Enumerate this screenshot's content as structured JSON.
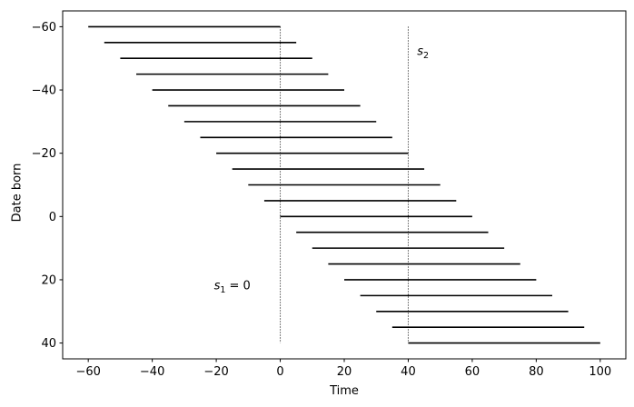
{
  "chart_data": {
    "type": "line",
    "subtype": "horizontal-interval-lifespans",
    "title": "",
    "xlabel": "Time",
    "ylabel": "Date born",
    "xlim": [
      -68,
      108
    ],
    "ylim": [
      -65,
      45
    ],
    "y_inverted": true,
    "grid": false,
    "legend": null,
    "xticks": [
      -60,
      -40,
      -20,
      0,
      20,
      40,
      60,
      80,
      100
    ],
    "yticks": [
      -60,
      -40,
      -20,
      0,
      20,
      40
    ],
    "lifespan_years": 60,
    "lifelines": [
      {
        "born": -60,
        "start": -60,
        "end": 0
      },
      {
        "born": -55,
        "start": -55,
        "end": 5
      },
      {
        "born": -50,
        "start": -50,
        "end": 10
      },
      {
        "born": -45,
        "start": -45,
        "end": 15
      },
      {
        "born": -40,
        "start": -40,
        "end": 20
      },
      {
        "born": -35,
        "start": -35,
        "end": 25
      },
      {
        "born": -30,
        "start": -30,
        "end": 30
      },
      {
        "born": -25,
        "start": -25,
        "end": 35
      },
      {
        "born": -20,
        "start": -20,
        "end": 40
      },
      {
        "born": -15,
        "start": -15,
        "end": 45
      },
      {
        "born": -10,
        "start": -10,
        "end": 50
      },
      {
        "born": -5,
        "start": -5,
        "end": 55
      },
      {
        "born": 0,
        "start": 0,
        "end": 60
      },
      {
        "born": 5,
        "start": 5,
        "end": 65
      },
      {
        "born": 10,
        "start": 10,
        "end": 70
      },
      {
        "born": 15,
        "start": 15,
        "end": 75
      },
      {
        "born": 20,
        "start": 20,
        "end": 80
      },
      {
        "born": 25,
        "start": 25,
        "end": 85
      },
      {
        "born": 30,
        "start": 30,
        "end": 90
      },
      {
        "born": 35,
        "start": 35,
        "end": 95
      },
      {
        "born": 40,
        "start": 40,
        "end": 100
      }
    ],
    "vlines": [
      {
        "id": "s1",
        "x": 0,
        "ymin": -60,
        "ymax": 40,
        "style": "dotted"
      },
      {
        "id": "s2",
        "x": 40,
        "ymin": -60,
        "ymax": 40,
        "style": "dotted"
      }
    ],
    "annotations": [
      {
        "id": "s1",
        "var": "s",
        "sub": "1",
        "suffix": " = 0",
        "x": -15,
        "y": 22
      },
      {
        "id": "s2",
        "var": "s",
        "sub": "2",
        "suffix": "",
        "x": 44.6,
        "y": -52
      }
    ],
    "colors": {
      "lifeline": "#000000",
      "vline": "#333333",
      "spine": "#000000",
      "text": "#000000",
      "background": "#ffffff"
    }
  }
}
